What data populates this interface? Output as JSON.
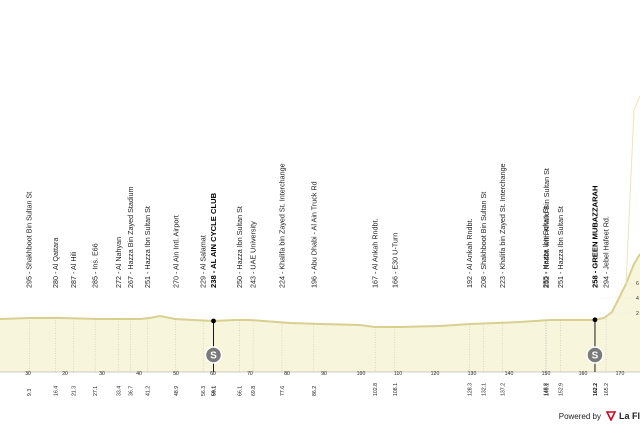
{
  "points": [
    {
      "label": "295 - Shakhboot Bin Sultan St",
      "km": "9.3",
      "strong": false
    },
    {
      "label": "280 - Al Qattara",
      "km": "16.4",
      "strong": false
    },
    {
      "label": "287 - Al Hili",
      "km": "21.3",
      "strong": false
    },
    {
      "label": "285 - Ins. E66",
      "km": "27.1",
      "strong": false
    },
    {
      "label": "272 - Al Nahyan",
      "km": "33.4",
      "strong": false
    },
    {
      "label": "267 - Hazza Bin Zayed Stadium",
      "km": "36.7",
      "strong": false
    },
    {
      "label": "251 - Hazza Ibn Sultan St",
      "km": "41.2",
      "strong": false
    },
    {
      "label": "270 - Al Ain Intl. Airport",
      "km": "48.9",
      "strong": false
    },
    {
      "label": "229 - Al Salamat",
      "km": "56.3",
      "strong": false
    },
    {
      "label": "238 - AL AIN CYCLE CLUB",
      "km": "59.1",
      "strong": true
    },
    {
      "label": "250 - Hazza Ibn Sultan St",
      "km": "66.1",
      "strong": false
    },
    {
      "label": "243 - UAE University",
      "km": "69.8",
      "strong": false
    },
    {
      "label": "224 - Khalifa bin Zayed St. Interchange",
      "km": "77.6",
      "strong": false
    },
    {
      "label": "196 - Abu Dhabi - Al Ain Truck Rd",
      "km": "86.2",
      "strong": false
    },
    {
      "label": "167 - Al Ankah Rndbt.",
      "km": "102.8",
      "strong": false
    },
    {
      "label": "166 - E30 U-Turn",
      "km": "108.1",
      "strong": false
    },
    {
      "label": "192 - Al Ankah Rndbt.",
      "km": "128.3",
      "strong": false
    },
    {
      "label": "208 - Shakhboot Bin Sultan St",
      "km": "132.1",
      "strong": false
    },
    {
      "label": "223 - Khalifa bin Zayed St. Interchange",
      "km": "137.2",
      "strong": false
    },
    {
      "label": "255 - Hazza Ibn Sultan St",
      "km": "148.8",
      "strong": false
    },
    {
      "label": "252 - Rndbt. with Khalid Bin Sultan St",
      "km": "149.1",
      "strong": false
    },
    {
      "label": "251 - Hazza Ibn Sultan St",
      "km": "152.9",
      "strong": false
    },
    {
      "label": "258 - GREEN MUBAZZARAH",
      "km": "162.2",
      "strong": true
    },
    {
      "label": "294 - Jebel Hafeet Rd.",
      "km": "165.2",
      "strong": false
    }
  ],
  "axis_ticks": [
    "30",
    "20",
    "30",
    "40",
    "50",
    "60",
    "70",
    "80",
    "90",
    "100",
    "110",
    "120",
    "130",
    "140",
    "150",
    "160",
    "170"
  ],
  "elevation_labels": [
    "6",
    "4",
    "2"
  ],
  "sprint_badges": [
    "S",
    "S"
  ],
  "footer": {
    "powered_by": "Powered by",
    "brand": "La Fl"
  }
}
